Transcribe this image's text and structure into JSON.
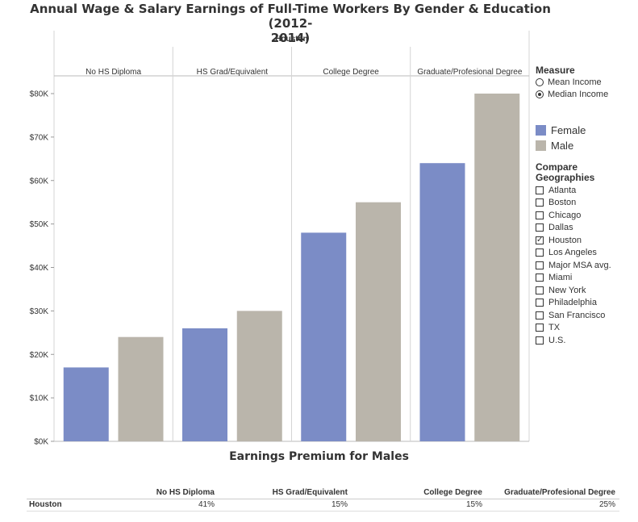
{
  "title": "Annual Wage & Salary Earnings of Full-Time Workers By Gender & Education (2012-2014)",
  "title_line1": "Annual Wage & Salary Earnings of Full-Time Workers By Gender & Education (2012-",
  "title_line2": "2014)",
  "chart_data": {
    "type": "bar",
    "geography_header": "Houston",
    "categories": [
      "No HS Diploma",
      "HS Grad/Equivalent",
      "College Degree",
      "Graduate/Profesional Degree"
    ],
    "series": [
      {
        "name": "Female",
        "color": "#7b8cc6",
        "values": [
          17000,
          26000,
          48000,
          64000
        ]
      },
      {
        "name": "Male",
        "color": "#bab5ab",
        "values": [
          24000,
          30000,
          55000,
          80000
        ]
      }
    ],
    "ylim": [
      0,
      80000
    ],
    "yticks": [
      0,
      10000,
      20000,
      30000,
      40000,
      50000,
      60000,
      70000,
      80000
    ],
    "ytick_labels": [
      "$0K",
      "$10K",
      "$20K",
      "$30K",
      "$40K",
      "$50K",
      "$60K",
      "$70K",
      "$80K"
    ],
    "legend_placement": "right"
  },
  "measure": {
    "title": "Measure",
    "options": [
      {
        "label": "Mean Income",
        "selected": false
      },
      {
        "label": "Median Income",
        "selected": true
      }
    ]
  },
  "legend": {
    "female": "Female",
    "male": "Male"
  },
  "compare": {
    "title_line1": "Compare",
    "title_line2": "Geographies",
    "options": [
      {
        "label": "Atlanta",
        "checked": false
      },
      {
        "label": "Boston",
        "checked": false
      },
      {
        "label": "Chicago",
        "checked": false
      },
      {
        "label": "Dallas",
        "checked": false
      },
      {
        "label": "Houston",
        "checked": true
      },
      {
        "label": "Los Angeles",
        "checked": false
      },
      {
        "label": "Major MSA avg.",
        "checked": false
      },
      {
        "label": "Miami",
        "checked": false
      },
      {
        "label": "New York",
        "checked": false
      },
      {
        "label": "Philadelphia",
        "checked": false
      },
      {
        "label": "San Francisco",
        "checked": false
      },
      {
        "label": "TX",
        "checked": false
      },
      {
        "label": "U.S.",
        "checked": false
      }
    ]
  },
  "premium": {
    "title": "Earnings Premium for Males",
    "headers": [
      "No HS Diploma",
      "HS Grad/Equivalent",
      "College Degree",
      "Graduate/Profesional Degree"
    ],
    "row_label": "Houston",
    "values": [
      "41%",
      "15%",
      "15%",
      "25%"
    ]
  }
}
